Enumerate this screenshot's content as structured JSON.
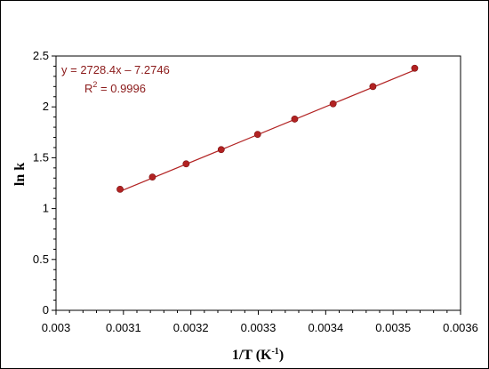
{
  "chart_data": {
    "type": "scatter",
    "title": "",
    "xlabel": "1/T (K",
    "xlabel_sup": "-1",
    "xlabel_close": ")",
    "ylabel": "ln k",
    "xlim": [
      0.003,
      0.0036
    ],
    "ylim": [
      0,
      2.5
    ],
    "x_ticks": [
      0.003,
      0.0031,
      0.0032,
      0.0033,
      0.0034,
      0.0035,
      0.0036
    ],
    "x_tick_labels": [
      "0.003",
      "0.0031",
      "0.0032",
      "0.0033",
      "0.0034",
      "0.0035",
      "0.0036"
    ],
    "y_ticks": [
      0,
      0.5,
      1,
      1.5,
      2,
      2.5
    ],
    "y_tick_labels": [
      "0",
      "0.5",
      "1",
      "1.5",
      "2",
      "2.5"
    ],
    "grid": false,
    "series": [
      {
        "x": [
          0.003095,
          0.003143,
          0.003193,
          0.003245,
          0.003299,
          0.003354,
          0.003411,
          0.00347,
          0.003532
        ],
        "y": [
          1.19,
          1.31,
          1.44,
          1.58,
          1.73,
          1.88,
          2.03,
          2.2,
          2.38
        ],
        "color": "#b22222"
      }
    ],
    "trendline": {
      "slope": 2728.4,
      "intercept": -7.2746,
      "x_range": [
        0.003095,
        0.003532
      ],
      "color": "#b22222"
    },
    "annotations": {
      "equation": "y = 2728.4x – 7.2746",
      "r2_prefix": "R",
      "r2_sup": "2",
      "r2_suffix": " = 0.9996",
      "color": "#8b1a1a"
    }
  }
}
